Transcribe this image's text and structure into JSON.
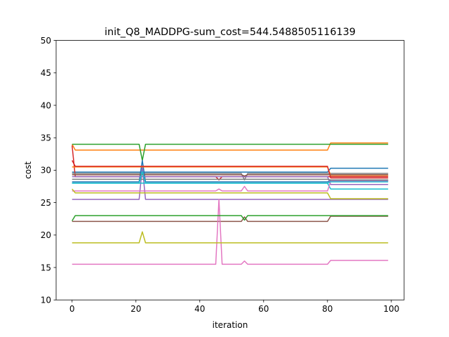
{
  "chart_data": {
    "type": "line",
    "title": "init_Q8_MADDPG-sum_cost=544.5488505116139",
    "xlabel": "iteration",
    "ylabel": "cost",
    "xlim": [
      -5,
      104
    ],
    "ylim": [
      10,
      50
    ],
    "xticks": [
      0,
      20,
      40,
      60,
      80,
      100
    ],
    "yticks": [
      10,
      15,
      20,
      25,
      30,
      35,
      40,
      45,
      50
    ],
    "grid": false,
    "legend": "none",
    "series": [
      {
        "color": "#1f77b4",
        "points": [
          [
            0,
            29.7
          ],
          [
            80,
            29.7
          ],
          [
            81,
            30.3
          ],
          [
            99,
            30.3
          ]
        ]
      },
      {
        "color": "#ff7f0e",
        "points": [
          [
            0,
            34.0
          ],
          [
            1,
            33.1
          ],
          [
            80,
            33.1
          ],
          [
            81,
            34.2
          ],
          [
            99,
            34.2
          ]
        ]
      },
      {
        "color": "#2ca02c",
        "points": [
          [
            0,
            34.0
          ],
          [
            21,
            34.0
          ],
          [
            22,
            31.5
          ],
          [
            23,
            34.0
          ],
          [
            99,
            34.0
          ]
        ]
      },
      {
        "color": "#d62728",
        "points": [
          [
            0,
            33.8
          ],
          [
            1,
            29.0
          ],
          [
            45,
            29.0
          ],
          [
            46,
            28.5
          ],
          [
            47,
            29.0
          ],
          [
            99,
            29.0
          ]
        ]
      },
      {
        "color": "#9467bd",
        "points": [
          [
            0,
            25.5
          ],
          [
            21,
            25.5
          ],
          [
            22,
            30.5
          ],
          [
            23,
            25.5
          ],
          [
            99,
            25.5
          ]
        ]
      },
      {
        "color": "#8c564b",
        "points": [
          [
            0,
            22.1
          ],
          [
            53,
            22.1
          ],
          [
            54,
            22.8
          ],
          [
            55,
            22.1
          ],
          [
            80,
            22.1
          ],
          [
            81,
            22.9
          ],
          [
            99,
            22.9
          ]
        ]
      },
      {
        "color": "#e377c2",
        "points": [
          [
            0,
            15.5
          ],
          [
            45,
            15.5
          ],
          [
            46,
            25.5
          ],
          [
            47,
            15.5
          ],
          [
            53,
            15.5
          ],
          [
            54,
            16.0
          ],
          [
            55,
            15.5
          ],
          [
            80,
            15.5
          ],
          [
            81,
            16.1
          ],
          [
            99,
            16.1
          ]
        ]
      },
      {
        "color": "#7f7f7f",
        "points": [
          [
            0,
            29.5
          ],
          [
            53,
            29.5
          ],
          [
            54,
            28.5
          ],
          [
            55,
            29.5
          ],
          [
            99,
            29.5
          ]
        ]
      },
      {
        "color": "#bcbd22",
        "points": [
          [
            0,
            18.8
          ],
          [
            21,
            18.8
          ],
          [
            22,
            20.5
          ],
          [
            23,
            18.8
          ],
          [
            99,
            18.8
          ]
        ]
      },
      {
        "color": "#17becf",
        "points": [
          [
            0,
            28.0
          ],
          [
            80,
            28.0
          ],
          [
            81,
            27.1
          ],
          [
            99,
            27.1
          ]
        ]
      },
      {
        "color": "#1f77b4",
        "points": [
          [
            0,
            28.2
          ],
          [
            21,
            28.2
          ],
          [
            22,
            31.5
          ],
          [
            23,
            28.2
          ],
          [
            80,
            28.2
          ],
          [
            81,
            28.4
          ],
          [
            99,
            28.4
          ]
        ]
      },
      {
        "color": "#ff7f0e",
        "points": [
          [
            0,
            30.5
          ],
          [
            80,
            30.5
          ],
          [
            81,
            29.2
          ],
          [
            99,
            29.2
          ]
        ]
      },
      {
        "color": "#2ca02c",
        "points": [
          [
            0,
            22.2
          ],
          [
            1,
            23.0
          ],
          [
            53,
            23.0
          ],
          [
            54,
            22.3
          ],
          [
            55,
            23.0
          ],
          [
            80,
            23.0
          ],
          [
            81,
            23.0
          ],
          [
            99,
            23.0
          ]
        ]
      },
      {
        "color": "#d62728",
        "points": [
          [
            0,
            31.5
          ],
          [
            1,
            30.6
          ],
          [
            80,
            30.6
          ],
          [
            81,
            28.8
          ],
          [
            99,
            28.8
          ]
        ]
      },
      {
        "color": "#9467bd",
        "points": [
          [
            0,
            29.0
          ],
          [
            80,
            29.0
          ],
          [
            81,
            27.8
          ],
          [
            99,
            27.8
          ]
        ]
      },
      {
        "color": "#8c564b",
        "points": [
          [
            0,
            29.3
          ],
          [
            53,
            29.3
          ],
          [
            54,
            29.1
          ],
          [
            55,
            29.3
          ],
          [
            99,
            29.3
          ]
        ]
      },
      {
        "color": "#e377c2",
        "points": [
          [
            0,
            26.8
          ],
          [
            45,
            26.8
          ],
          [
            46,
            27.1
          ],
          [
            47,
            26.8
          ],
          [
            53,
            26.8
          ],
          [
            54,
            27.5
          ],
          [
            55,
            26.8
          ],
          [
            80,
            26.8
          ],
          [
            81,
            28.3
          ],
          [
            99,
            28.3
          ]
        ]
      },
      {
        "color": "#7f7f7f",
        "points": [
          [
            0,
            28.6
          ],
          [
            80,
            28.6
          ],
          [
            81,
            28.5
          ],
          [
            99,
            28.5
          ]
        ]
      },
      {
        "color": "#bcbd22",
        "points": [
          [
            0,
            27.1
          ],
          [
            1,
            26.5
          ],
          [
            80,
            26.5
          ],
          [
            81,
            25.6
          ],
          [
            99,
            25.6
          ]
        ]
      },
      {
        "color": "#17becf",
        "points": [
          [
            0,
            28.0
          ],
          [
            21,
            28.0
          ],
          [
            22,
            29.8
          ],
          [
            23,
            28.0
          ],
          [
            80,
            28.0
          ],
          [
            81,
            28.2
          ],
          [
            99,
            28.2
          ]
        ]
      }
    ]
  }
}
